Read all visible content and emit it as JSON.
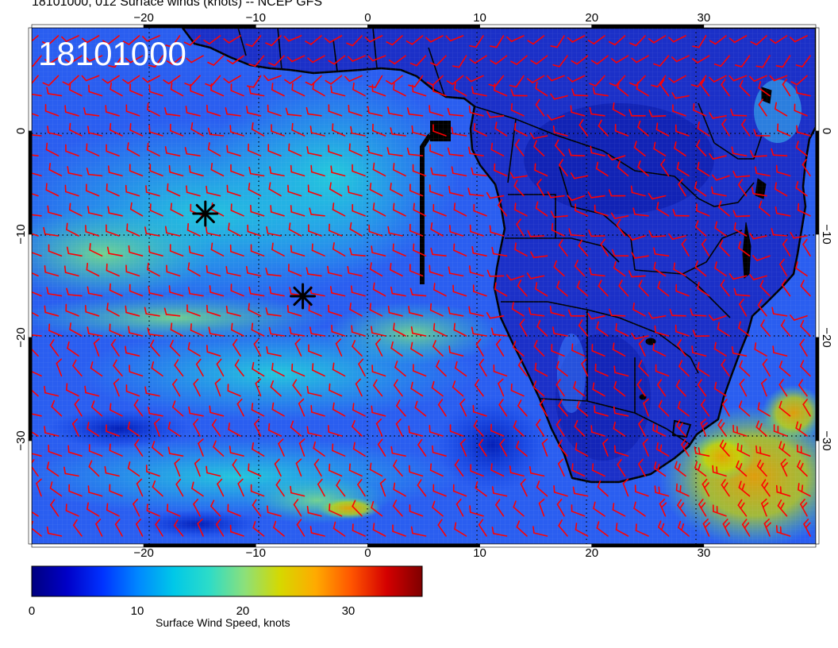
{
  "title": "18101000, 012 Surface winds (knots) -- NCEP GFS",
  "date_stamp": "18101000",
  "colorbar": {
    "label": "Surface Wind Speed, knots",
    "min": 0,
    "max": 37,
    "ticks": [
      "0",
      "10",
      "20",
      "30"
    ],
    "colors": [
      "#00007f",
      "#0000c8",
      "#0033ff",
      "#0088ff",
      "#00c8e8",
      "#2ddcc8",
      "#8ce07a",
      "#d6d800",
      "#ffaa00",
      "#ff5500",
      "#d40000",
      "#7f0000"
    ]
  },
  "map": {
    "lon_ticks": [
      "−20",
      "−10",
      "0",
      "10",
      "20",
      "30"
    ],
    "lat_ticks": [
      "0",
      "−10",
      "−20",
      "−30"
    ],
    "lon_range": [
      -30,
      40
    ],
    "lat_range": [
      -40,
      10
    ],
    "ocean_color": "#2e6af0",
    "land_color": "#1b2fc8",
    "barb_color": "#ff0000",
    "marker_icon": "asterisk-icon",
    "markers": [
      {
        "name": "asterisk-marker-1",
        "lon": -14.5,
        "lat": -8
      },
      {
        "name": "asterisk-marker-2",
        "lon": -5.8,
        "lat": -16
      }
    ]
  }
}
